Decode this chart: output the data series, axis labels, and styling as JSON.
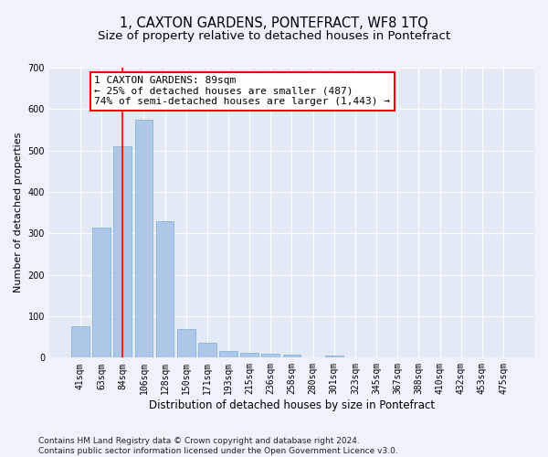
{
  "title": "1, CAXTON GARDENS, PONTEFRACT, WF8 1TQ",
  "subtitle": "Size of property relative to detached houses in Pontefract",
  "xlabel": "Distribution of detached houses by size in Pontefract",
  "ylabel": "Number of detached properties",
  "categories": [
    "41sqm",
    "63sqm",
    "84sqm",
    "106sqm",
    "128sqm",
    "150sqm",
    "171sqm",
    "193sqm",
    "215sqm",
    "236sqm",
    "258sqm",
    "280sqm",
    "301sqm",
    "323sqm",
    "345sqm",
    "367sqm",
    "388sqm",
    "410sqm",
    "432sqm",
    "453sqm",
    "475sqm"
  ],
  "values": [
    75,
    315,
    510,
    575,
    330,
    70,
    37,
    17,
    12,
    10,
    8,
    0,
    6,
    0,
    0,
    0,
    0,
    0,
    0,
    0,
    0
  ],
  "bar_color": "#aec6e8",
  "bar_edge_color": "#7bafd4",
  "red_line_index": 2,
  "annotation_line1": "1 CAXTON GARDENS: 89sqm",
  "annotation_line2": "← 25% of detached houses are smaller (487)",
  "annotation_line3": "74% of semi-detached houses are larger (1,443) →",
  "footer_line1": "Contains HM Land Registry data © Crown copyright and database right 2024.",
  "footer_line2": "Contains public sector information licensed under the Open Government Licence v3.0.",
  "background_color": "#eef2fa",
  "plot_background_color": "#e4eaf5",
  "grid_color": "#ffffff",
  "title_fontsize": 10.5,
  "subtitle_fontsize": 9.5,
  "xlabel_fontsize": 8.5,
  "ylabel_fontsize": 8,
  "tick_fontsize": 7,
  "annotation_fontsize": 8,
  "footer_fontsize": 6.5,
  "ylim": [
    0,
    700
  ],
  "yticks": [
    0,
    100,
    200,
    300,
    400,
    500,
    600,
    700
  ]
}
